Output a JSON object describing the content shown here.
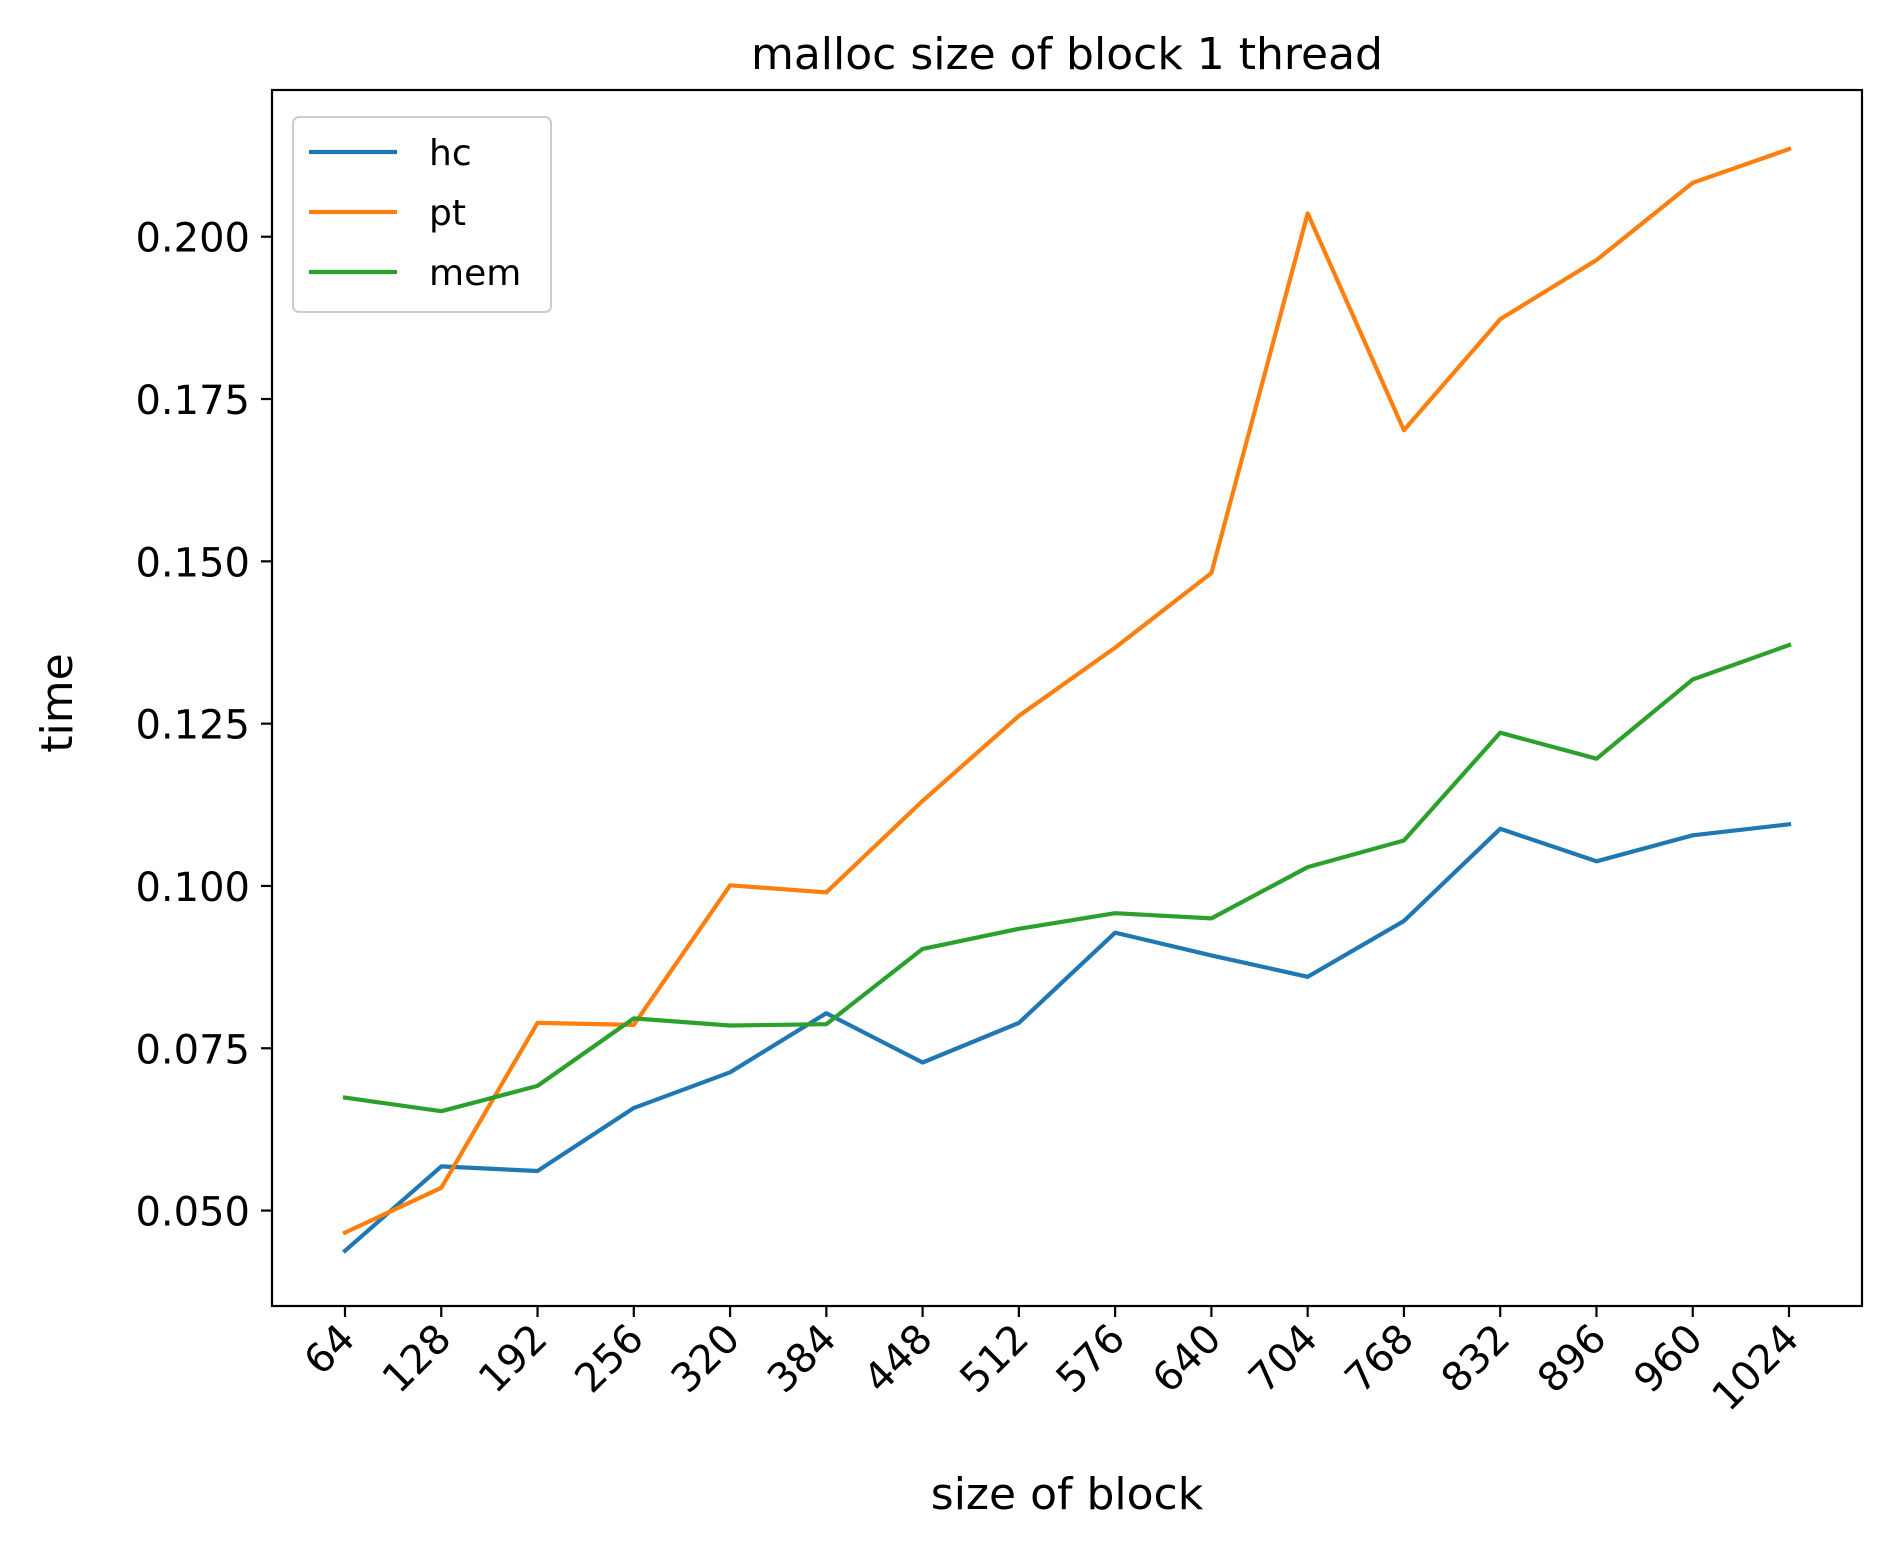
{
  "chart_data": {
    "type": "line",
    "title": "malloc size of block 1 thread",
    "xlabel": "size of block",
    "ylabel": "time",
    "categories": [
      "64",
      "128",
      "192",
      "256",
      "320",
      "384",
      "448",
      "512",
      "576",
      "640",
      "704",
      "768",
      "832",
      "896",
      "960",
      "1024"
    ],
    "ylim": [
      0.0353,
      0.2226
    ],
    "yticks": [
      0.05,
      0.075,
      0.1,
      0.125,
      0.15,
      0.175,
      0.2
    ],
    "ytick_labels": [
      "0.050",
      "0.075",
      "0.100",
      "0.125",
      "0.150",
      "0.175",
      "0.200"
    ],
    "grid": false,
    "legend_position": "top-left",
    "series": [
      {
        "name": "hc",
        "color": "#1f77b4",
        "values": [
          0.0438,
          0.0568,
          0.0561,
          0.0658,
          0.0713,
          0.0804,
          0.0728,
          0.0789,
          0.0928,
          0.0893,
          0.086,
          0.0946,
          0.1088,
          0.1038,
          0.1078,
          0.1095
        ]
      },
      {
        "name": "pt",
        "color": "#ff7f0e",
        "values": [
          0.0466,
          0.0535,
          0.0789,
          0.0786,
          0.1001,
          0.099,
          0.1131,
          0.1262,
          0.1367,
          0.1482,
          0.2036,
          0.1702,
          0.1873,
          0.1964,
          0.2083,
          0.2135
        ]
      },
      {
        "name": "mem",
        "color": "#2ca02c",
        "values": [
          0.0674,
          0.0653,
          0.0692,
          0.0796,
          0.0785,
          0.0787,
          0.0903,
          0.0934,
          0.0958,
          0.095,
          0.1029,
          0.107,
          0.1236,
          0.1196,
          0.1318,
          0.1371
        ]
      }
    ]
  }
}
